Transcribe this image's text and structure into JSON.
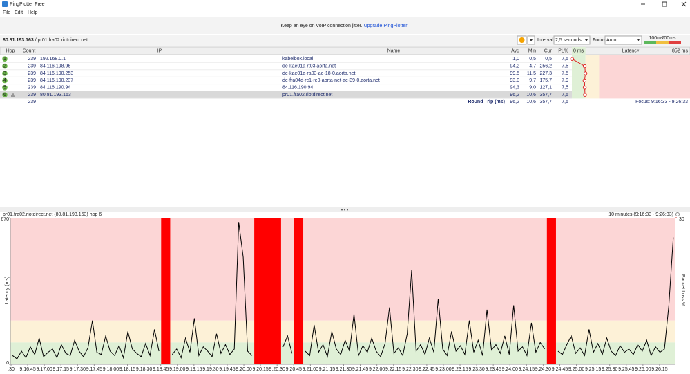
{
  "window": {
    "title": "PingPlotter Free",
    "menu": [
      "File",
      "Edit",
      "Help"
    ]
  },
  "banner": {
    "text": "Keep an eye on VoIP connection jitter.",
    "link": "Upgrade PingPlotter!"
  },
  "toolbar": {
    "target_ip": "80.81.193.163",
    "target_name": "/ pr01.fra02.riotdirect.net",
    "interval_label": "Interval",
    "interval": "2,5 seconds",
    "focus_label": "Focus",
    "focus": "Auto",
    "thresholds": [
      {
        "value": 100,
        "label": "100ms"
      },
      {
        "value": 200,
        "label": "200ms"
      }
    ]
  },
  "table": {
    "headers": [
      "Hop",
      "Count",
      "IP",
      "Name",
      "Avg",
      "Min",
      "Cur",
      "PL%"
    ],
    "latency_header": "Latency",
    "latency_min": {
      "value": 0,
      "label": "0 ms"
    },
    "latency_max": {
      "value": 852,
      "label": "852 ms"
    },
    "rows": [
      {
        "hop": "1",
        "count": "239",
        "ip": "192.168.0.1",
        "name": "kabelbox.local",
        "avg": {
          "value": 1.0,
          "label": "1,0"
        },
        "min": "0,5",
        "cur": "0,5",
        "pl": "7,5"
      },
      {
        "hop": "2",
        "count": "239",
        "ip": "84.116.198.96",
        "name": "de-kae01a-rt03.aorta.net",
        "avg": {
          "value": 94.2,
          "label": "94,2"
        },
        "min": "4,7",
        "cur": "256,2",
        "pl": "7,5"
      },
      {
        "hop": "3",
        "count": "239",
        "ip": "84.116.190.253",
        "name": "de-kae01a-ra03-ae-18-0.aorta.net",
        "avg": {
          "value": 99.5,
          "label": "99,5"
        },
        "min": "11,5",
        "cur": "227,3",
        "pl": "7,5"
      },
      {
        "hop": "4",
        "count": "239",
        "ip": "84.116.190.237",
        "name": "de-fra04d-rc1-re0-aorta-net-ae-39-0.aorta.net",
        "avg": {
          "value": 93.0,
          "label": "93,0"
        },
        "min": "9,7",
        "cur": "175,7",
        "pl": "7,9"
      },
      {
        "hop": "5",
        "count": "239",
        "ip": "84.116.190.94",
        "name": "84.116.190.94",
        "avg": {
          "value": 94.3,
          "label": "94,3"
        },
        "min": "9,0",
        "cur": "127,1",
        "pl": "7,5"
      },
      {
        "hop": "6",
        "count": "239",
        "ip": "80.81.193.163",
        "name": "pr01.fra02.riotdirect.net",
        "avg": {
          "value": 96.2,
          "label": "96,2"
        },
        "min": "10,6",
        "cur": "357,7",
        "pl": "7,5"
      }
    ],
    "footer": {
      "count": "239",
      "label": "Round Trip (ms)",
      "avg": "96,2",
      "min": "10,6",
      "cur": "357,7",
      "pl": "7,5",
      "focus": "Focus: 9:16:33 - 9:26:33"
    }
  },
  "chart_data": {
    "type": "line",
    "title": "pr01.fra02.riotdirect.net (80.81.193.163) hop 6",
    "subtitle": "10 minutes (9:16:33 - 9:26:33)",
    "y_label": "Latency (ms)",
    "y2_label": "Packet Loss %",
    "ylim": [
      0,
      670
    ],
    "yticks": [
      0,
      670
    ],
    "y2lim": [
      0,
      30
    ],
    "y2ticks": [
      30
    ],
    "color": "#000000",
    "loss_color": "#ff0000",
    "xtick_labels": [
      ":30",
      "9:16:45",
      "9:17:00",
      "9:17:15",
      "9:17:30",
      "9:17:45",
      "9:18:00",
      "9:18:15",
      "9:18:30",
      "9:18:45",
      "9:19:00",
      "9:19:15",
      "9:19:30",
      "9:19:45",
      "9:20:00",
      "9:20:15",
      "9:20:30",
      "9:20:45",
      "9:21:00",
      "9:21:15",
      "9:21:30",
      "9:21:45",
      "9:22:00",
      "9:22:15",
      "9:22:30",
      "9:22:45",
      "9:23:00",
      "9:23:15",
      "9:23:30",
      "9:23:45",
      "9:24:00",
      "9:24:15",
      "9:24:30",
      "9:24:45",
      "9:25:00",
      "9:25:15",
      "9:25:30",
      "9:25:45",
      "9:26:00",
      "9:26:15"
    ],
    "values": [
      40,
      25,
      60,
      30,
      80,
      45,
      120,
      35,
      55,
      70,
      30,
      90,
      50,
      40,
      110,
      60,
      35,
      75,
      200,
      55,
      45,
      130,
      60,
      40,
      85,
      30,
      150,
      70,
      50,
      35,
      95,
      40,
      160,
      60,
      null,
      null,
      45,
      70,
      30,
      120,
      55,
      210,
      40,
      80,
      60,
      35,
      140,
      50,
      90,
      45,
      70,
      650,
      490,
      60,
      40,
      null,
      null,
      null,
      null,
      null,
      null,
      80,
      130,
      50,
      null,
      null,
      60,
      40,
      180,
      55,
      90,
      35,
      150,
      70,
      45,
      110,
      60,
      230,
      40,
      85,
      55,
      120,
      60,
      35,
      95,
      260,
      50,
      75,
      40,
      140,
      430,
      60,
      90,
      45,
      120,
      55,
      300,
      70,
      40,
      150,
      60,
      85,
      45,
      200,
      55,
      110,
      40,
      250,
      65,
      90,
      50,
      130,
      45,
      270,
      60,
      80,
      40,
      190,
      55,
      100,
      70,
      null,
      null,
      60,
      45,
      90,
      130,
      50,
      75,
      40,
      160,
      55,
      95,
      45,
      120,
      60,
      40,
      85,
      55,
      70,
      45,
      90,
      60,
      110,
      40,
      80,
      55,
      70,
      270,
      580
    ]
  }
}
